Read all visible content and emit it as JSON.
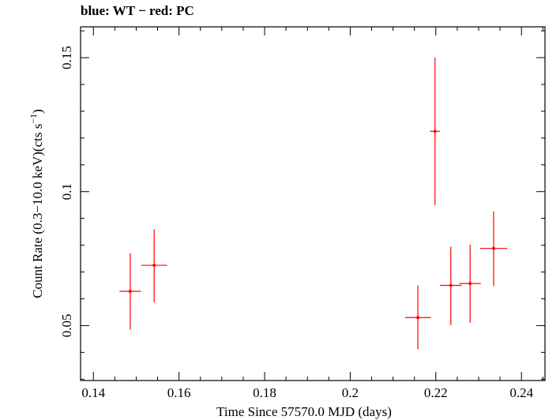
{
  "chart_data": {
    "type": "scatter",
    "title": "blue: WT − red: PC",
    "xlabel": "Time Since 57570.0 MJD (days)",
    "ylabel_main": "Count Rate (0.3−10.0 keV)(cts s",
    "ylabel_sup": "−1",
    "ylabel_close": ")",
    "xlim": [
      0.137,
      0.2455
    ],
    "ylim": [
      0.0295,
      0.1615
    ],
    "xticks": [
      {
        "value": 0.14,
        "label": "0.14"
      },
      {
        "value": 0.16,
        "label": "0.16"
      },
      {
        "value": 0.18,
        "label": "0.18"
      },
      {
        "value": 0.2,
        "label": "0.2"
      },
      {
        "value": 0.22,
        "label": "0.22"
      },
      {
        "value": 0.24,
        "label": "0.24"
      }
    ],
    "yticks": [
      {
        "value": 0.05,
        "label": "0.05"
      },
      {
        "value": 0.1,
        "label": "0.1"
      },
      {
        "value": 0.15,
        "label": "0.15"
      }
    ],
    "grid": false,
    "series": [
      {
        "color": "#ff0000",
        "points": [
          {
            "x": 0.1486,
            "xerr": 0.0025,
            "y": 0.0628,
            "yerr_low": 0.0143,
            "yerr_high": 0.0142
          },
          {
            "x": 0.1542,
            "xerr": 0.003,
            "y": 0.0725,
            "yerr_low": 0.0138,
            "yerr_high": 0.0135
          },
          {
            "x": 0.2158,
            "xerr": 0.003,
            "y": 0.053,
            "yerr_low": 0.0118,
            "yerr_high": 0.012
          },
          {
            "x": 0.2198,
            "xerr": 0.0012,
            "y": 0.1225,
            "yerr_low": 0.0275,
            "yerr_high": 0.0275
          },
          {
            "x": 0.2235,
            "xerr": 0.0025,
            "y": 0.065,
            "yerr_low": 0.0148,
            "yerr_high": 0.0145
          },
          {
            "x": 0.228,
            "xerr": 0.0025,
            "y": 0.0657,
            "yerr_low": 0.0147,
            "yerr_high": 0.0145
          },
          {
            "x": 0.2335,
            "xerr": 0.0032,
            "y": 0.0788,
            "yerr_low": 0.014,
            "yerr_high": 0.0138
          }
        ]
      }
    ]
  }
}
